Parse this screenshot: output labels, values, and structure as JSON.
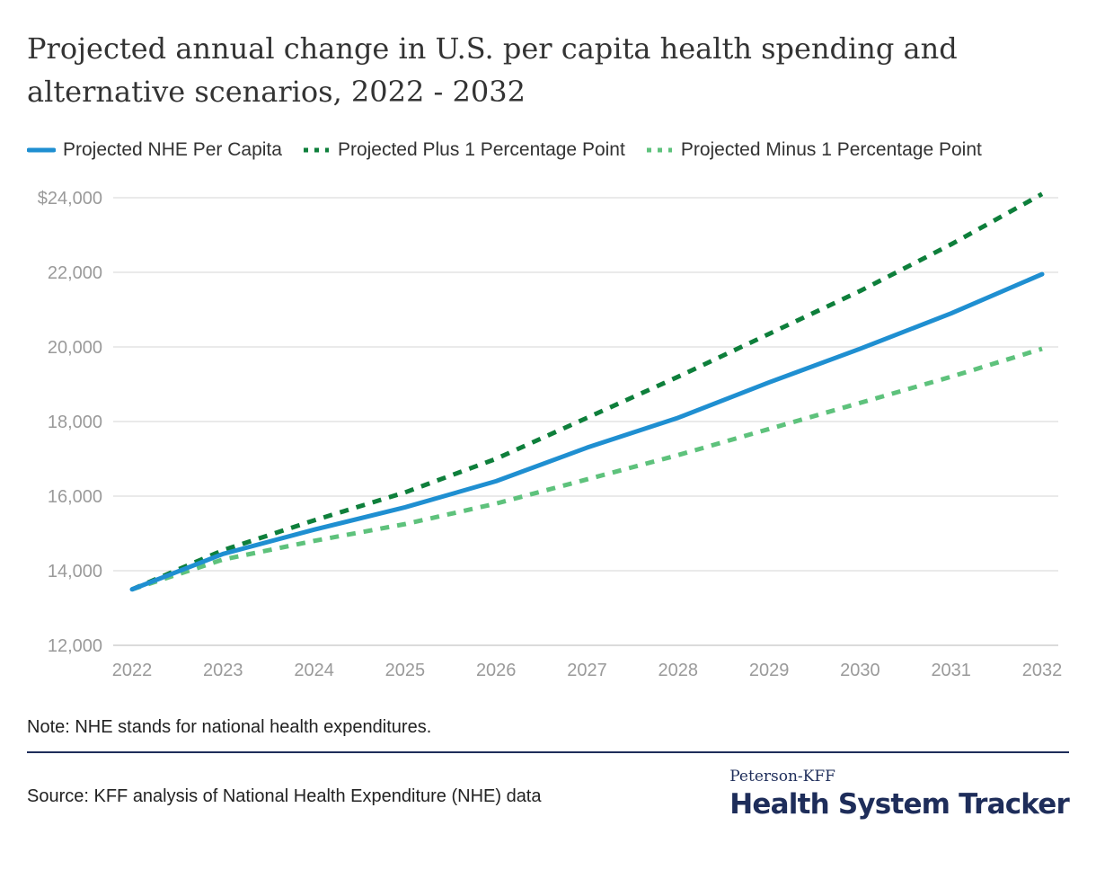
{
  "title": "Projected annual change in U.S. per capita health spending and alternative scenarios, 2022 - 2032",
  "note": "Note: NHE stands for national health expenditures.",
  "source": "Source: KFF analysis of National Health Expenditure (NHE) data",
  "brand": {
    "top": "Peterson-KFF",
    "main": "Health System Tracker"
  },
  "colors": {
    "nhe": "#1f8fd1",
    "plus": "#0e7f3b",
    "minus": "#5ec27c",
    "grid": "#e3e3e3",
    "navy": "#1e2d5a"
  },
  "chart_data": {
    "type": "line",
    "title": "Projected annual change in U.S. per capita health spending and alternative scenarios, 2022 - 2032",
    "x": [
      "2022",
      "2023",
      "2024",
      "2025",
      "2026",
      "2027",
      "2028",
      "2029",
      "2030",
      "2031",
      "2032"
    ],
    "ylim": [
      12000,
      24000
    ],
    "yticks": [
      12000,
      14000,
      16000,
      18000,
      20000,
      22000,
      24000
    ],
    "ytick_labels": [
      "12,000",
      "14,000",
      "16,000",
      "18,000",
      "20,000",
      "22,000",
      "$24,000"
    ],
    "grid": true,
    "legend_position": "top",
    "series": [
      {
        "name": "Projected NHE Per Capita",
        "style": "solid",
        "color": "#1f8fd1",
        "values": [
          13500,
          14450,
          15100,
          15700,
          16400,
          17300,
          18100,
          19050,
          19950,
          20900,
          21950
        ]
      },
      {
        "name": "Projected Plus 1 Percentage Point",
        "style": "dashed",
        "color": "#0e7f3b",
        "values": [
          13500,
          14550,
          15350,
          16100,
          17000,
          18100,
          19200,
          20350,
          21500,
          22750,
          24100
        ]
      },
      {
        "name": "Projected Minus 1 Percentage Point",
        "style": "dashed",
        "color": "#5ec27c",
        "values": [
          13500,
          14300,
          14800,
          15250,
          15800,
          16450,
          17100,
          17800,
          18500,
          19200,
          19950
        ]
      }
    ]
  }
}
